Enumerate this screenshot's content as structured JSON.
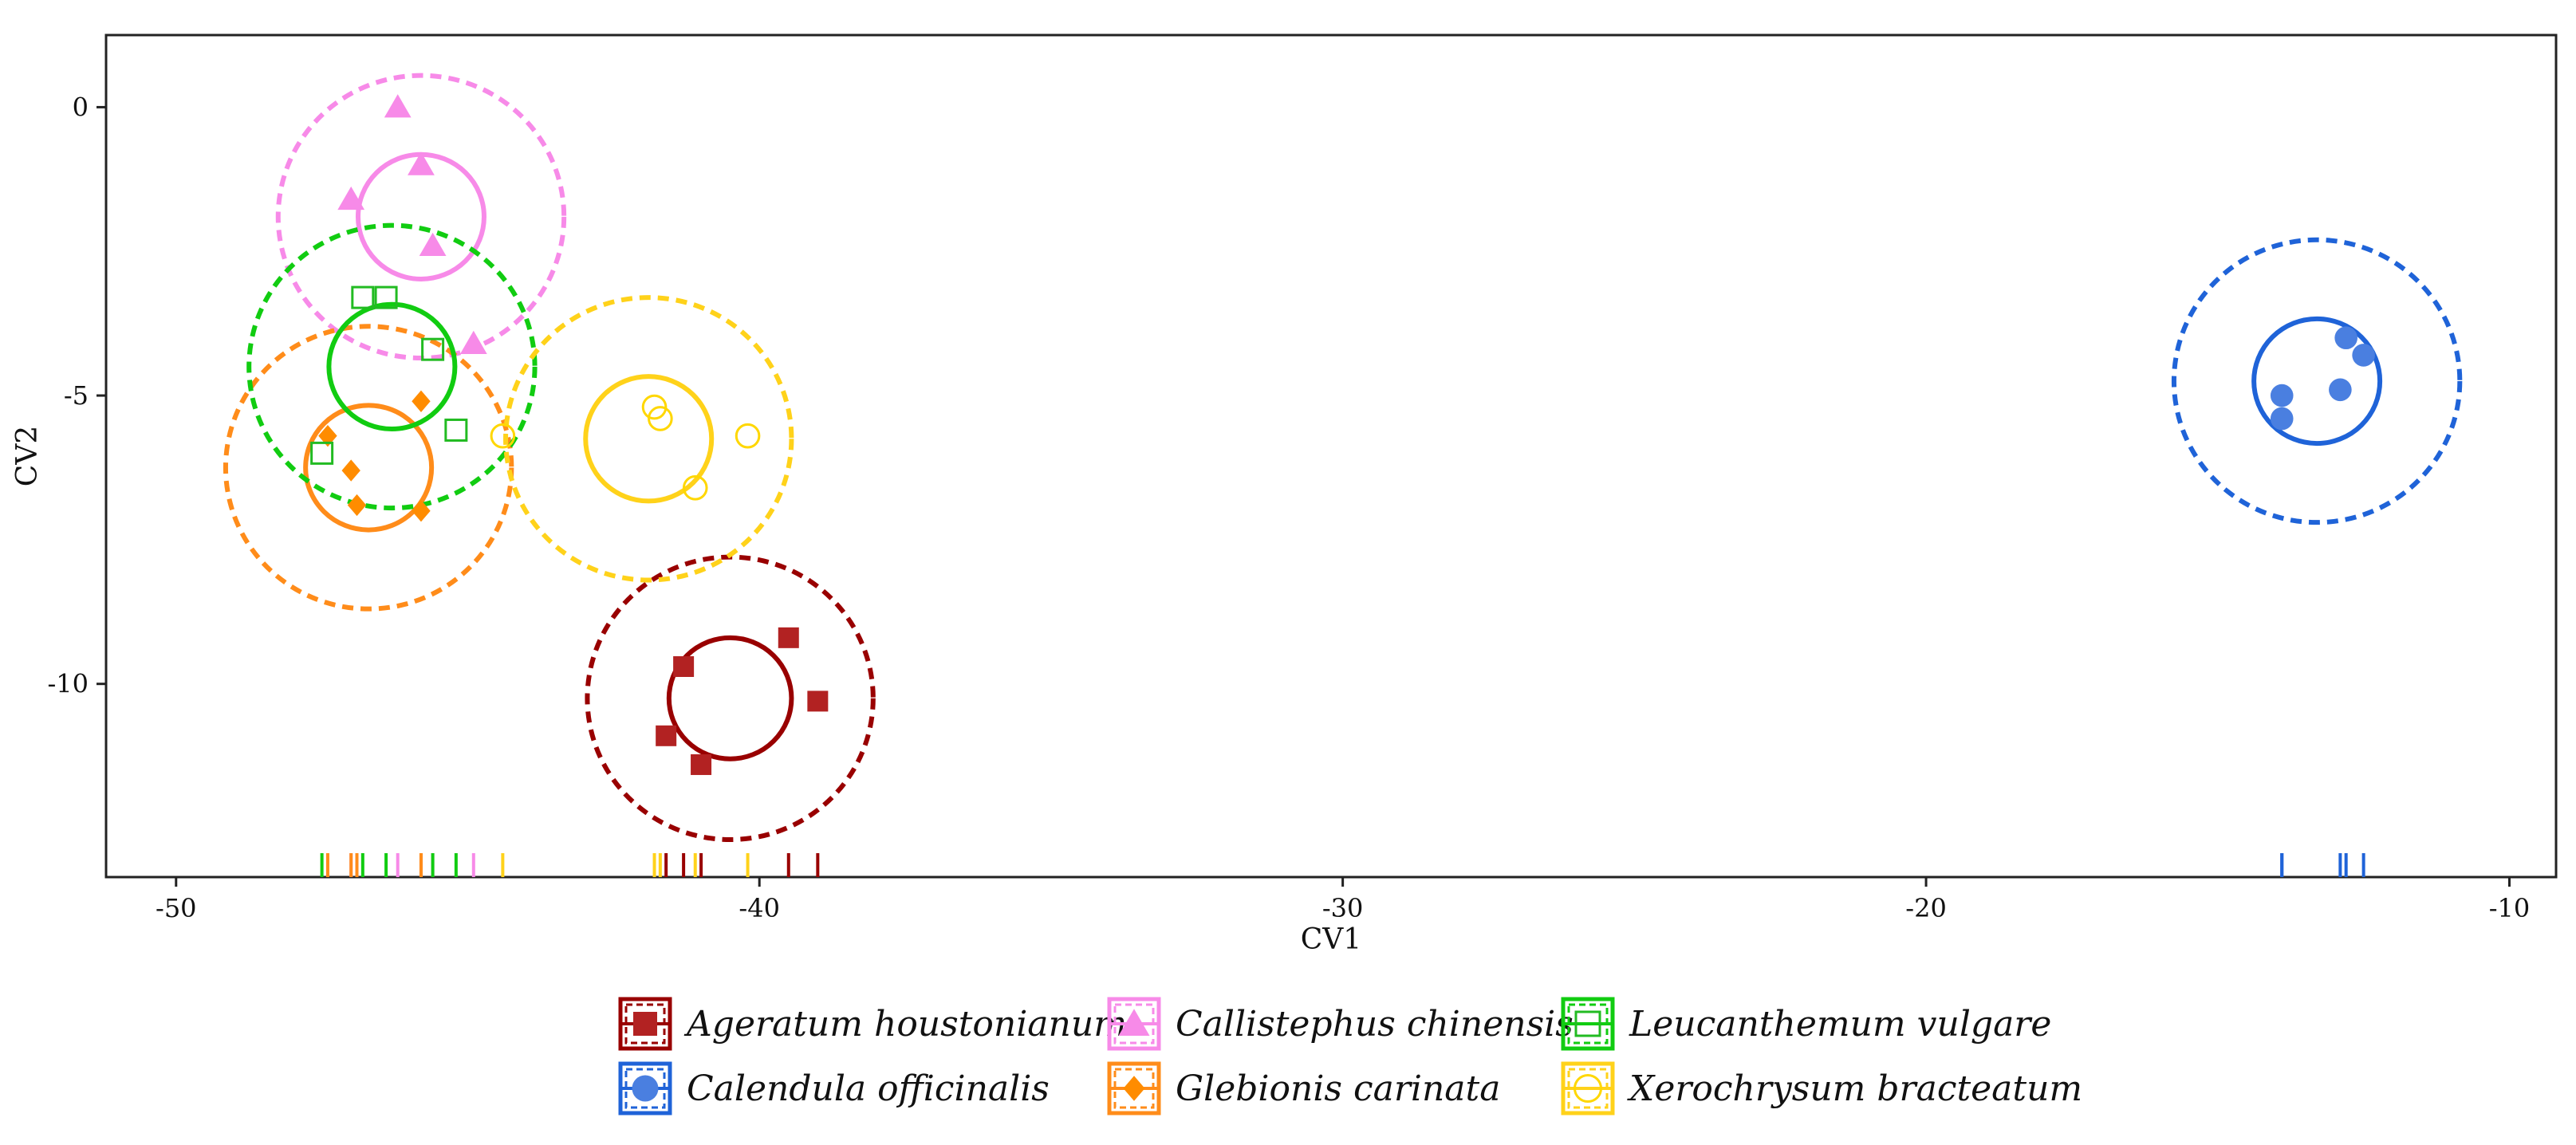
{
  "chart_data": {
    "type": "scatter",
    "title": "",
    "xlabel": "CV1",
    "ylabel": "CV2",
    "xlim": [
      -51.2,
      -9.2
    ],
    "ylim": [
      -13.35,
      1.25
    ],
    "xticks": [
      -50,
      -40,
      -30,
      -20,
      -10
    ],
    "xtick_labels": [
      "-50",
      "-40",
      "-30",
      "-20",
      "-10"
    ],
    "yticks": [
      0,
      -5,
      -10
    ],
    "ytick_labels": [
      "0",
      "-5",
      "-10"
    ],
    "grid": false,
    "legend_position": "bottom",
    "rug": "x-axis bottom",
    "series": [
      {
        "name": "Ageratum houstonianum",
        "color": "#b22222",
        "ellipse_color": "#990000",
        "marker": "filled-square",
        "points": [
          [
            -39.5,
            -9.2
          ],
          [
            -39.0,
            -10.3
          ],
          [
            -41.3,
            -9.7
          ],
          [
            -41.6,
            -10.9
          ],
          [
            -41.0,
            -11.4
          ]
        ],
        "center": [
          -40.5,
          -10.25
        ],
        "inner_radius": 1.05,
        "outer_radius": 2.45
      },
      {
        "name": "Calendula officinalis",
        "color": "#4a7fe0",
        "ellipse_color": "#1f63d8",
        "marker": "filled-circle",
        "points": [
          [
            -12.8,
            -4.0
          ],
          [
            -12.5,
            -4.3
          ],
          [
            -12.9,
            -4.9
          ],
          [
            -13.9,
            -5.0
          ],
          [
            -13.9,
            -5.4
          ]
        ],
        "center": [
          -13.3,
          -4.75
        ],
        "inner_radius": 1.08,
        "outer_radius": 2.45
      },
      {
        "name": "Callistephus chinensis",
        "color": "#f78ae8",
        "ellipse_color": "#f78ae8",
        "marker": "filled-triangle",
        "points": [
          [
            -46.2,
            0.0
          ],
          [
            -45.8,
            -1.0
          ],
          [
            -47.0,
            -1.6
          ],
          [
            -45.6,
            -2.4
          ],
          [
            -44.9,
            -4.1
          ]
        ],
        "center": [
          -45.8,
          -1.9
        ],
        "inner_radius": 1.08,
        "outer_radius": 2.45
      },
      {
        "name": "Glebionis carinata",
        "color": "#ff8c00",
        "ellipse_color": "#ff8c1a",
        "marker": "filled-diamond",
        "points": [
          [
            -45.8,
            -5.1
          ],
          [
            -47.4,
            -5.7
          ],
          [
            -47.0,
            -6.3
          ],
          [
            -46.9,
            -6.9
          ],
          [
            -45.8,
            -7.0
          ]
        ],
        "center": [
          -46.7,
          -6.25
        ],
        "inner_radius": 1.08,
        "outer_radius": 2.45
      },
      {
        "name": "Leucanthemum vulgare",
        "color": "#22bb22",
        "ellipse_color": "#11cc11",
        "marker": "open-square",
        "points": [
          [
            -46.8,
            -3.3
          ],
          [
            -46.4,
            -3.3
          ],
          [
            -45.6,
            -4.2
          ],
          [
            -45.2,
            -5.6
          ],
          [
            -47.5,
            -6.0
          ]
        ],
        "center": [
          -46.3,
          -4.5
        ],
        "inner_radius": 1.08,
        "outer_radius": 2.45
      },
      {
        "name": "Xerochrysum bracteatum",
        "color": "#ffd700",
        "ellipse_color": "#ffd21a",
        "marker": "open-circle",
        "points": [
          [
            -41.8,
            -5.2
          ],
          [
            -41.7,
            -5.4
          ],
          [
            -40.2,
            -5.7
          ],
          [
            -44.4,
            -5.7
          ],
          [
            -41.1,
            -6.6
          ]
        ],
        "center": [
          -41.9,
          -5.75
        ],
        "inner_radius": 1.08,
        "outer_radius": 2.45
      }
    ]
  },
  "legend": {
    "items": [
      {
        "label": "Ageratum houstonianum",
        "series": 0
      },
      {
        "label": "Callistephus chinensis",
        "series": 2
      },
      {
        "label": "Leucanthemum vulgare",
        "series": 4
      },
      {
        "label": "Calendula officinalis",
        "series": 1
      },
      {
        "label": "Glebionis carinata",
        "series": 3
      },
      {
        "label": "Xerochrysum bracteatum",
        "series": 5
      }
    ]
  }
}
